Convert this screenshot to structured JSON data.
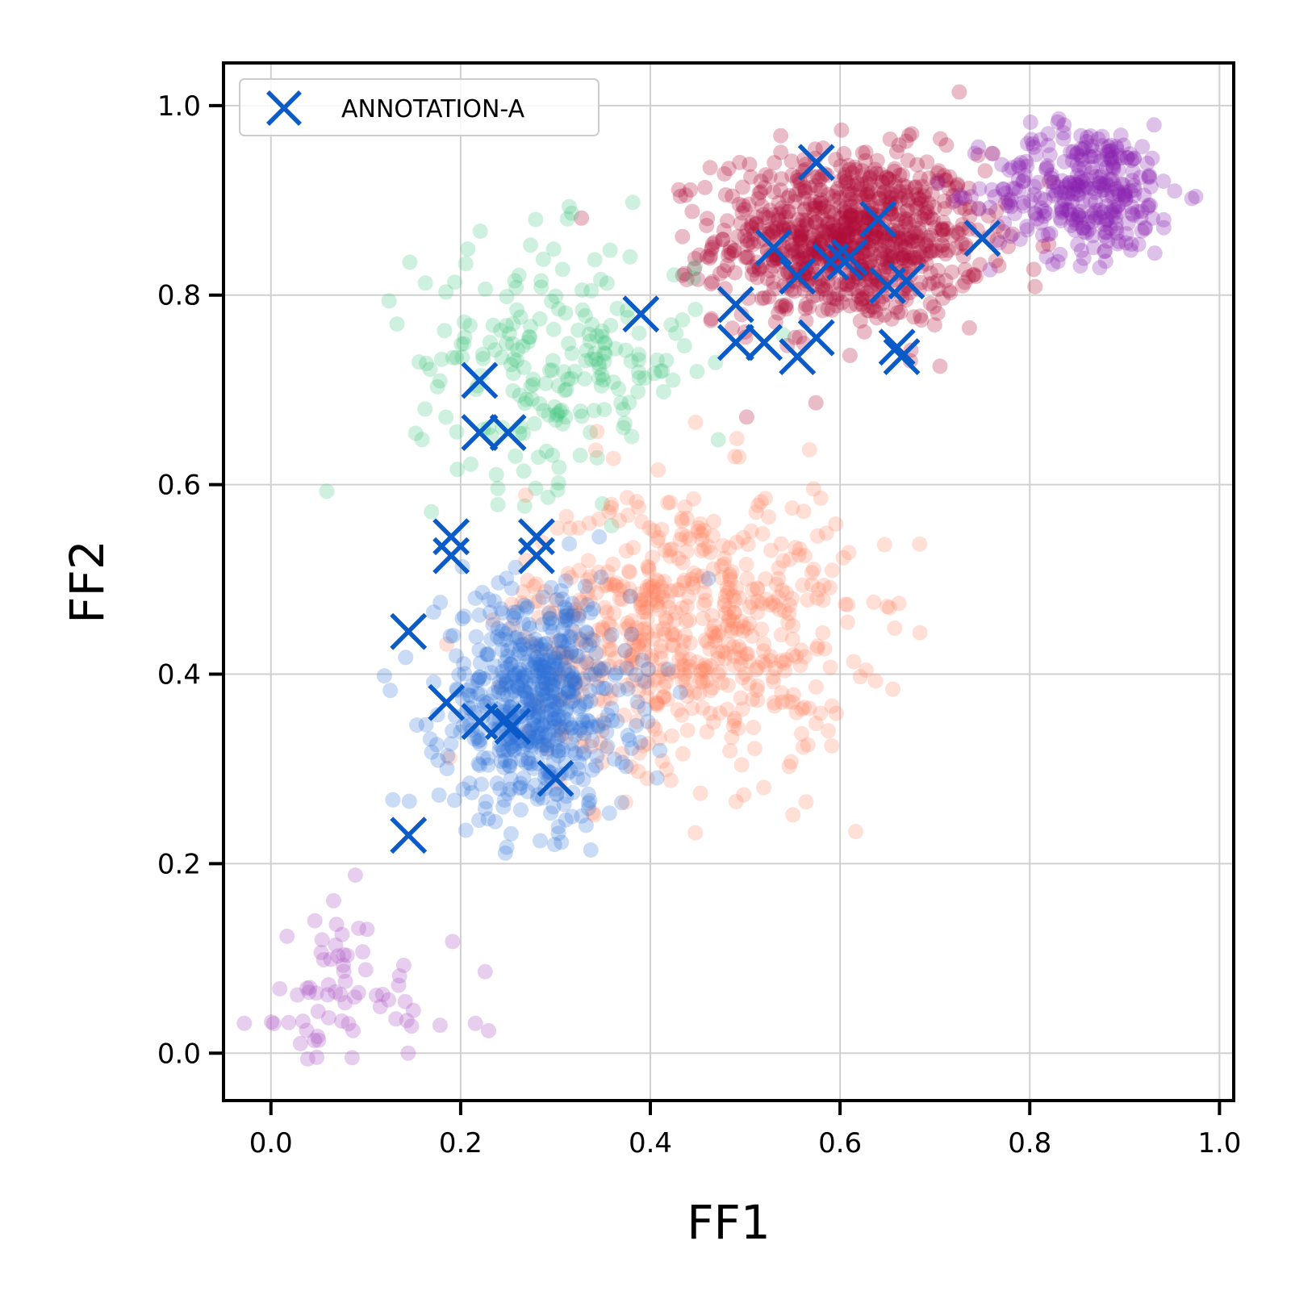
{
  "chart_data": {
    "type": "scatter",
    "title": "",
    "xlabel": "FF1",
    "ylabel": "FF2",
    "xlim": [
      -0.05,
      1.015
    ],
    "ylim": [
      -0.05,
      1.045
    ],
    "xticks": [
      "0.0",
      "0.2",
      "0.4",
      "0.6",
      "0.8",
      "1.0"
    ],
    "yticks": [
      "0.0",
      "0.2",
      "0.4",
      "0.6",
      "0.8",
      "1.0"
    ],
    "grid": true,
    "legend_position": "top-left",
    "legend": [
      {
        "label": "ANNOTATION-A",
        "marker": "x",
        "color": "#0a5ac8"
      }
    ],
    "background_clusters": [
      {
        "color": "#b0103a",
        "alpha": 0.28,
        "count": 900,
        "center": [
          0.61,
          0.86
        ],
        "spread": [
          0.07,
          0.045
        ]
      },
      {
        "color": "#8a22b0",
        "alpha": 0.28,
        "count": 320,
        "center": [
          0.86,
          0.91
        ],
        "spread": [
          0.05,
          0.035
        ]
      },
      {
        "color": "#3cc47a",
        "alpha": 0.25,
        "count": 220,
        "center": [
          0.3,
          0.73
        ],
        "spread": [
          0.075,
          0.065
        ]
      },
      {
        "color": "#ff7f5a",
        "alpha": 0.25,
        "count": 600,
        "center": [
          0.44,
          0.45
        ],
        "spread": [
          0.085,
          0.075
        ]
      },
      {
        "color": "#2a6fd6",
        "alpha": 0.25,
        "count": 600,
        "center": [
          0.28,
          0.37
        ],
        "spread": [
          0.05,
          0.06
        ]
      },
      {
        "color": "#b05cc8",
        "alpha": 0.3,
        "count": 70,
        "center": [
          0.07,
          0.06
        ],
        "spread": [
          0.065,
          0.05
        ]
      }
    ],
    "series": [
      {
        "name": "ANNOTATION-A",
        "marker": "x",
        "color": "#0a5ac8",
        "points": [
          [
            0.575,
            0.94
          ],
          [
            0.64,
            0.88
          ],
          [
            0.53,
            0.85
          ],
          [
            0.75,
            0.86
          ],
          [
            0.59,
            0.835
          ],
          [
            0.605,
            0.835
          ],
          [
            0.61,
            0.84
          ],
          [
            0.555,
            0.82
          ],
          [
            0.67,
            0.815
          ],
          [
            0.65,
            0.81
          ],
          [
            0.39,
            0.78
          ],
          [
            0.49,
            0.79
          ],
          [
            0.49,
            0.75
          ],
          [
            0.52,
            0.75
          ],
          [
            0.575,
            0.755
          ],
          [
            0.555,
            0.735
          ],
          [
            0.66,
            0.745
          ],
          [
            0.665,
            0.735
          ],
          [
            0.22,
            0.71
          ],
          [
            0.22,
            0.655
          ],
          [
            0.25,
            0.655
          ],
          [
            0.19,
            0.545
          ],
          [
            0.28,
            0.545
          ],
          [
            0.19,
            0.525
          ],
          [
            0.28,
            0.525
          ],
          [
            0.145,
            0.445
          ],
          [
            0.185,
            0.37
          ],
          [
            0.22,
            0.35
          ],
          [
            0.245,
            0.35
          ],
          [
            0.255,
            0.345
          ],
          [
            0.3,
            0.29
          ],
          [
            0.145,
            0.23
          ]
        ]
      }
    ]
  }
}
